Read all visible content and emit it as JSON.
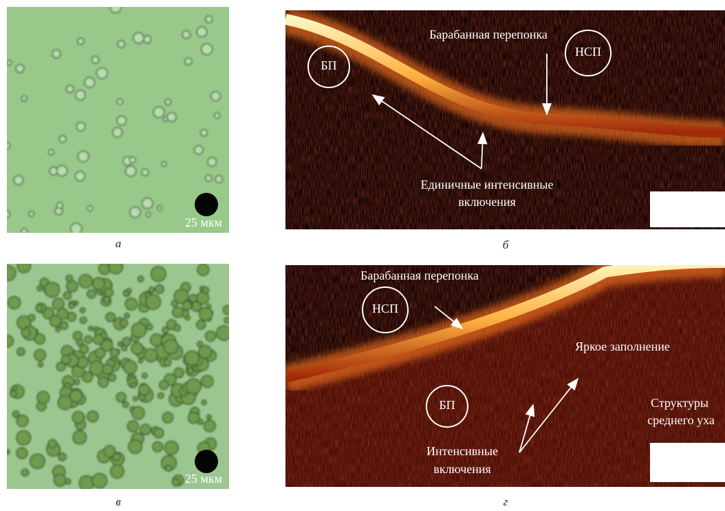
{
  "panels": [
    {
      "label": "а",
      "scale_label": "25 мкм"
    },
    {
      "label": "б",
      "annotations": {
        "membrane": "Барабанная перепонка",
        "bp": "БП",
        "nsp": "НСП",
        "inclusions": [
          "Единичные интенсивные",
          "включения"
        ]
      }
    },
    {
      "label": "в",
      "scale_label": "25 мкм"
    },
    {
      "label": "г",
      "annotations": {
        "membrane": "Барабанная перепонка",
        "nsp": "НСП",
        "bp": "БП",
        "bright": "Яркое заполнение",
        "structures": [
          "Структуры",
          "среднего уха"
        ],
        "inclusions": [
          "Интенсивные",
          "включения"
        ]
      }
    }
  ]
}
